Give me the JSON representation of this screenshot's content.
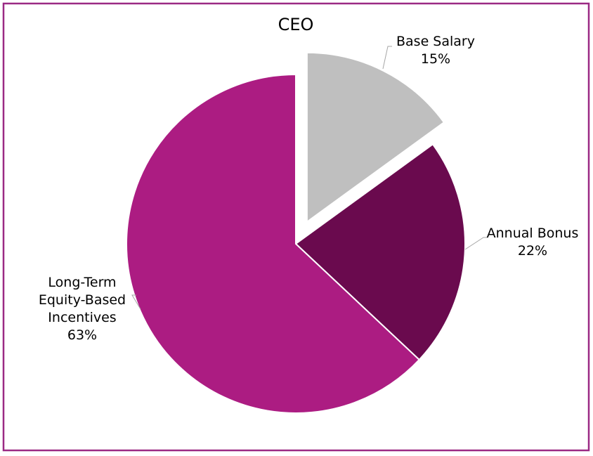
{
  "chart_data": {
    "type": "pie",
    "title": "CEO",
    "categories": [
      "Base Salary",
      "Annual Bonus",
      "Long-Term Equity-Based Incentives"
    ],
    "values": [
      15,
      22,
      63
    ],
    "value_labels": [
      "15%",
      "22%",
      "63%"
    ],
    "colors": [
      "#bfbfbf",
      "#6a0a4e",
      "#ac1c82"
    ]
  }
}
